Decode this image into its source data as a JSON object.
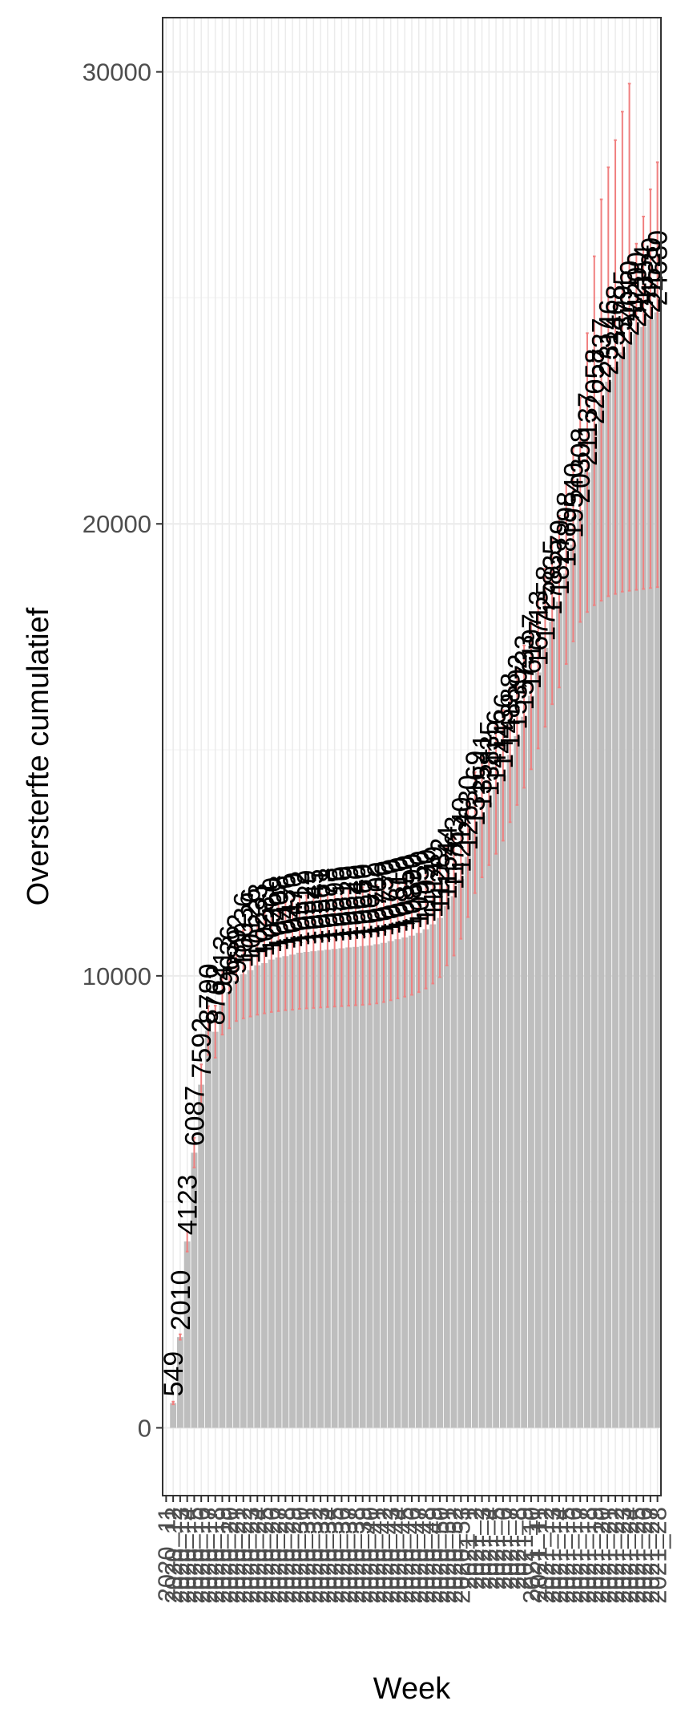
{
  "chart_data": {
    "type": "bar",
    "title": "",
    "xlabel": "Week",
    "ylabel": "Oversterfte cumulatief",
    "ylim": [
      -1500,
      31200
    ],
    "y_ticks": [
      0,
      10000,
      20000,
      30000
    ],
    "grid": true,
    "legend": "none",
    "colors": {
      "bar": "#bebebe",
      "errorbar": "#f08080",
      "text": "#000000",
      "axis_text": "#4d4d4d",
      "grid_major": "#ebebeb",
      "grid_minor": "#f5f5f5",
      "panel_border": "#333333"
    },
    "series": [
      {
        "values": [
          0,
          549,
          2010,
          4123,
          6087,
          7592,
          8790,
          8762,
          9413,
          9636,
          9892,
          10036,
          10126,
          10233,
          10281,
          10360,
          10408,
          10436,
          10470,
          10512,
          10529,
          10545,
          10561,
          10578,
          10596,
          10610,
          10629,
          10640,
          10660,
          10672,
          10700,
          10730,
          10770,
          10810,
          10850,
          10890,
          10950,
          11030,
          11140,
          11282,
          11544,
          11763,
          12140,
          12630,
          13169,
          13541,
          13835,
          14116,
          14436,
          14888,
          15302,
          15733,
          16197,
          16713,
          17258,
          17835,
          18279,
          18898,
          19540,
          20308,
          21137,
          22058,
          22737,
          23146,
          23468,
          23795,
          24010,
          24200,
          24354,
          24520,
          24680
        ],
        "lower": [
          0,
          520,
          1950,
          3900,
          5760,
          7150,
          8250,
          8190,
          8700,
          8840,
          9000,
          9060,
          9100,
          9140,
          9170,
          9200,
          9220,
          9240,
          9250,
          9270,
          9280,
          9290,
          9300,
          9310,
          9320,
          9330,
          9340,
          9350,
          9360,
          9370,
          9390,
          9420,
          9460,
          9500,
          9540,
          9580,
          9640,
          9720,
          9830,
          9970,
          10230,
          10450,
          10820,
          11300,
          11830,
          12180,
          12450,
          12700,
          12990,
          13400,
          13780,
          14160,
          14570,
          15030,
          15510,
          16010,
          16380,
          16900,
          17400,
          17830,
          18050,
          18200,
          18300,
          18400,
          18450,
          18500,
          18520,
          18540,
          18560,
          18580,
          18600
        ],
        "upper": [
          0,
          580,
          2070,
          4350,
          6420,
          8040,
          9330,
          9340,
          10130,
          10440,
          10790,
          11010,
          11150,
          11330,
          11390,
          11520,
          11600,
          11630,
          11690,
          11750,
          11780,
          11800,
          11820,
          11850,
          11870,
          11890,
          11920,
          11930,
          11960,
          11980,
          12010,
          12040,
          12080,
          12120,
          12160,
          12200,
          12260,
          12340,
          12450,
          12590,
          12860,
          13080,
          13460,
          13960,
          14510,
          14900,
          15220,
          15530,
          15880,
          16380,
          16820,
          17310,
          17830,
          18400,
          19010,
          19660,
          20180,
          20900,
          21680,
          22790,
          24220,
          25920,
          27180,
          27890,
          28490,
          29120,
          29740,
          26200,
          26800,
          27400,
          28000
        ]
      }
    ],
    "bar_labels": [
      "",
      "549",
      "2010",
      "4123",
      "6087",
      "7592",
      "8790",
      "8762",
      "9413",
      "9636",
      "9892",
      "10036",
      "10126",
      "10233",
      "10281",
      "10360",
      "10408",
      "10436",
      "10470",
      "10512",
      "10529",
      "10545",
      "10561",
      "10578",
      "10596",
      "10610",
      "10629",
      "10640",
      "10660",
      "10672",
      "10700",
      "10730",
      "10770",
      "10810",
      "10850",
      "10890",
      "10950",
      "11030",
      "11140",
      "11282",
      "11544",
      "11763",
      "12140",
      "12630",
      "13169",
      "13541",
      "13835",
      "14116",
      "14436",
      "14888",
      "15302",
      "15733",
      "16197",
      "16713",
      "17258",
      "17835",
      "18279",
      "18898",
      "19540",
      "20308",
      "21137",
      "22058",
      "22737",
      "23146",
      "23468",
      "23795",
      "24010",
      "24200",
      "24354",
      "24520",
      "24680"
    ],
    "categories": [
      "2020_11",
      "2020_12",
      "2020_13",
      "2020_14",
      "2020_15",
      "2020_16",
      "2020_17",
      "2020_18",
      "2020_19",
      "2020_20",
      "2020_21",
      "2020_22",
      "2020_23",
      "2020_24",
      "2020_25",
      "2020_26",
      "2020_27",
      "2020_28",
      "2020_29",
      "2020_30",
      "2020_31",
      "2020_32",
      "2020_33",
      "2020_34",
      "2020_35",
      "2020_36",
      "2020_37",
      "2020_38",
      "2020_39",
      "2020_40",
      "2020_41",
      "2020_42",
      "2020_43",
      "2020_44",
      "2020_45",
      "2020_46",
      "2020_47",
      "2020_48",
      "2020_49",
      "2020_50",
      "2020_51",
      "2020_52",
      "2020_53",
      "2021_1",
      "2021_2",
      "2021_3",
      "2021_4",
      "2021_5",
      "2021_6",
      "2021_7",
      "2021_8",
      "2021_9",
      "2021_10",
      "2021_11",
      "2021_12",
      "2021_13",
      "2021_14",
      "2021_15",
      "2021_16",
      "2021_17",
      "2021_18",
      "2021_19",
      "2021_20",
      "2021_21",
      "2021_22",
      "2021_23",
      "2021_24",
      "2021_25",
      "2021_26",
      "2021_27",
      "2021_28"
    ]
  }
}
